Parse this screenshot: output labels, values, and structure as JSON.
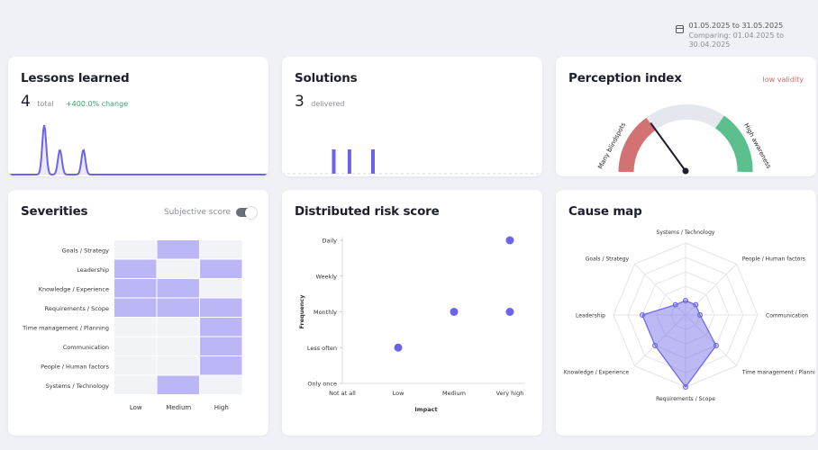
{
  "header": {
    "date_range": "01.05.2025 to 31.05.2025",
    "comparing": "Comparing: 01.04.2025 to 30.04.2025"
  },
  "lessons": {
    "title": "Lessons learned",
    "count": "4",
    "count_label": "total",
    "change": "+400.0% change"
  },
  "solutions": {
    "title": "Solutions",
    "count": "3",
    "count_label": "delivered"
  },
  "perception": {
    "title": "Perception index",
    "validity": "low validity",
    "left_label": "Many blindspots",
    "right_label": "High awareness",
    "needle_level": 0.3
  },
  "severities": {
    "title": "Severities",
    "toggle_label": "Subjective score",
    "rows": [
      "Goals / Strategy",
      "Leadership",
      "Knowledge / Experience",
      "Requirements / Scope",
      "Time management / Planning",
      "Communication",
      "People / Human factors",
      "Systems / Technology"
    ],
    "columns": [
      "Low",
      "Medium",
      "High"
    ],
    "cells": [
      [
        0,
        1,
        0
      ],
      [
        1,
        0,
        1
      ],
      [
        1,
        1,
        0
      ],
      [
        1,
        1,
        1
      ],
      [
        0,
        0,
        1
      ],
      [
        0,
        0,
        1
      ],
      [
        0,
        0,
        1
      ],
      [
        0,
        1,
        0
      ]
    ]
  },
  "risk": {
    "title": "Distributed risk score",
    "ylabel": "Frequency",
    "xlabel": "Impact",
    "yticks": [
      "Daily",
      "Weekly",
      "Monthly",
      "Less often",
      "Only once"
    ],
    "xticks": [
      "Not at all",
      "Low",
      "Medium",
      "Very high"
    ]
  },
  "cause_map": {
    "title": "Cause map",
    "axes": [
      "Systems / Technology",
      "People / Human factors",
      "Communication",
      "Time management / Planni",
      "Requirements / Scope",
      "Knowledge / Experience",
      "Leadership",
      "Goals / Strategy"
    ]
  },
  "chart_data": [
    {
      "type": "line",
      "title": "Lessons learned",
      "x": [
        0,
        1,
        2,
        3,
        4,
        5,
        6,
        7,
        8,
        9,
        10,
        11,
        12,
        13,
        14,
        15,
        16,
        17,
        18,
        19,
        20,
        21,
        22,
        23,
        24,
        25,
        26,
        27,
        28,
        29,
        30
      ],
      "values": [
        0,
        0,
        0,
        2,
        0,
        1,
        0,
        0,
        1,
        0,
        0,
        0,
        0,
        0,
        0,
        0,
        0,
        0,
        0,
        0,
        0,
        0,
        0,
        0,
        0,
        0,
        0,
        0,
        0,
        0,
        0
      ],
      "color": "#6b63e8"
    },
    {
      "type": "bar",
      "title": "Solutions",
      "x": [
        0,
        1,
        2,
        3,
        4,
        5,
        6,
        7,
        8,
        9,
        10,
        11,
        12,
        13,
        14,
        15,
        16,
        17,
        18,
        19,
        20,
        21,
        22,
        23,
        24,
        25,
        26,
        27,
        28,
        29,
        30
      ],
      "values": [
        0,
        0,
        0,
        0,
        0,
        1,
        0,
        1,
        0,
        0,
        1,
        0,
        0,
        0,
        0,
        0,
        0,
        0,
        0,
        0,
        0,
        0,
        0,
        0,
        0,
        0,
        0,
        0,
        0,
        0,
        0
      ],
      "color": "#6b63e8"
    },
    {
      "type": "scatter",
      "title": "Distributed risk score",
      "xlabel": "Impact",
      "ylabel": "Frequency",
      "x_categories": [
        "Not at all",
        "Low",
        "Medium",
        "Very high"
      ],
      "y_categories": [
        "Only once",
        "Less often",
        "Monthly",
        "Weekly",
        "Daily"
      ],
      "points": [
        {
          "x": "Very high",
          "y": "Daily"
        },
        {
          "x": "Medium",
          "y": "Monthly"
        },
        {
          "x": "Very high",
          "y": "Monthly"
        },
        {
          "x": "Low",
          "y": "Less often"
        }
      ],
      "color": "#6b63e8"
    },
    {
      "type": "radar",
      "title": "Cause map",
      "axes": [
        "Systems / Technology",
        "People / Human factors",
        "Communication",
        "Time management / Planning",
        "Requirements / Scope",
        "Knowledge / Experience",
        "Leadership",
        "Goals / Strategy"
      ],
      "values": [
        0.2,
        0.2,
        0.2,
        0.6,
        1.0,
        0.6,
        0.6,
        0.2
      ],
      "max": 1.0,
      "color": "#6b63e8"
    }
  ]
}
